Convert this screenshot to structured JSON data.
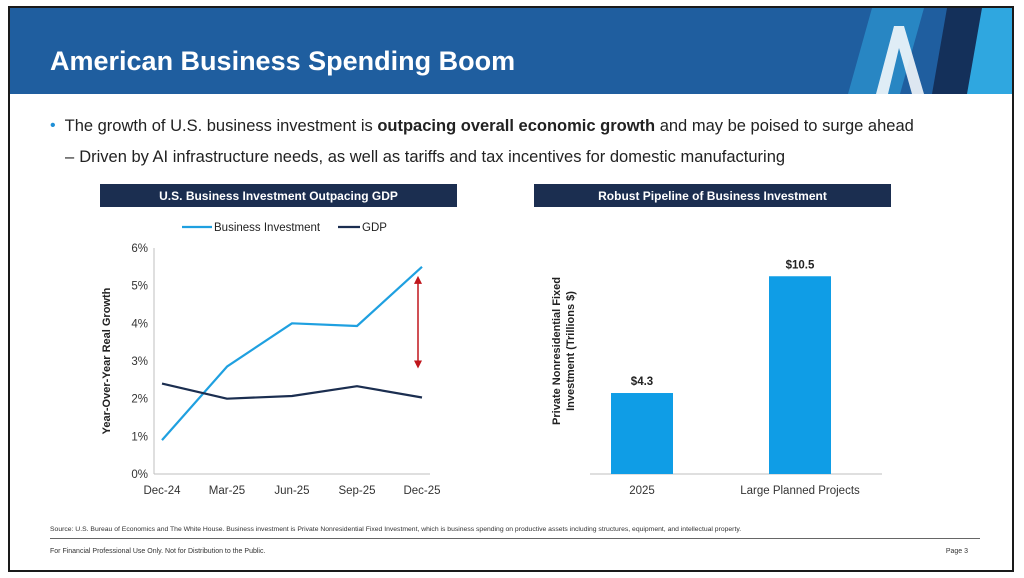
{
  "header": {
    "title": "American Business Spending Boom"
  },
  "bullets": {
    "main_pre": "The growth of U.S. business investment is ",
    "main_bold": "outpacing overall economic growth",
    "main_post": " and may be poised to surge ahead",
    "sub": "Driven by AI infrastructure needs, as well as tariffs and tax incentives for domestic manufacturing"
  },
  "colors": {
    "header_bg": "#1f5e9f",
    "panel_title_bg": "#1b2e50",
    "bi_line": "#1fa0e0",
    "gdp_line": "#1b2e50",
    "bar": "#0f9de6",
    "arrow": "#c0161c"
  },
  "footer": {
    "source": "Source: U.S. Bureau of Economics and The White House. Business investment is Private Nonresidential Fixed Investment, which is business spending on productive assets including structures, equipment, and intellectual property.",
    "disclaimer": "For Financial Professional Use Only. Not for Distribution to the Public.",
    "page": "Page 3"
  },
  "chart_data": [
    {
      "type": "line",
      "title": "U.S. Business Investment Outpacing GDP",
      "ylabel": "Year-Over-Year Real Growth",
      "xlabel": "",
      "categories": [
        "Dec-24",
        "Mar-25",
        "Jun-25",
        "Sep-25",
        "Dec-25"
      ],
      "series": [
        {
          "name": "Business Investment",
          "values": [
            0.9,
            2.85,
            4.0,
            3.93,
            5.5
          ]
        },
        {
          "name": "GDP",
          "values": [
            2.4,
            2.0,
            2.07,
            2.33,
            2.03
          ]
        }
      ],
      "ylim": [
        0,
        6
      ],
      "yticks": [
        "0%",
        "1%",
        "2%",
        "3%",
        "4%",
        "5%",
        "6%"
      ],
      "legend": "top-center",
      "grid": false,
      "annotation": "double-headed arrow between series at Dec-25"
    },
    {
      "type": "bar",
      "title": "Robust Pipeline of Business Investment",
      "ylabel": "Private Nonresidential Fixed Investment (Trillions $)",
      "xlabel": "",
      "categories": [
        "2025",
        "Large Planned Projects"
      ],
      "values": [
        4.3,
        10.5
      ],
      "data_labels": [
        "$4.3",
        "$10.5"
      ],
      "ylim": [
        0,
        12
      ],
      "grid": false
    }
  ]
}
